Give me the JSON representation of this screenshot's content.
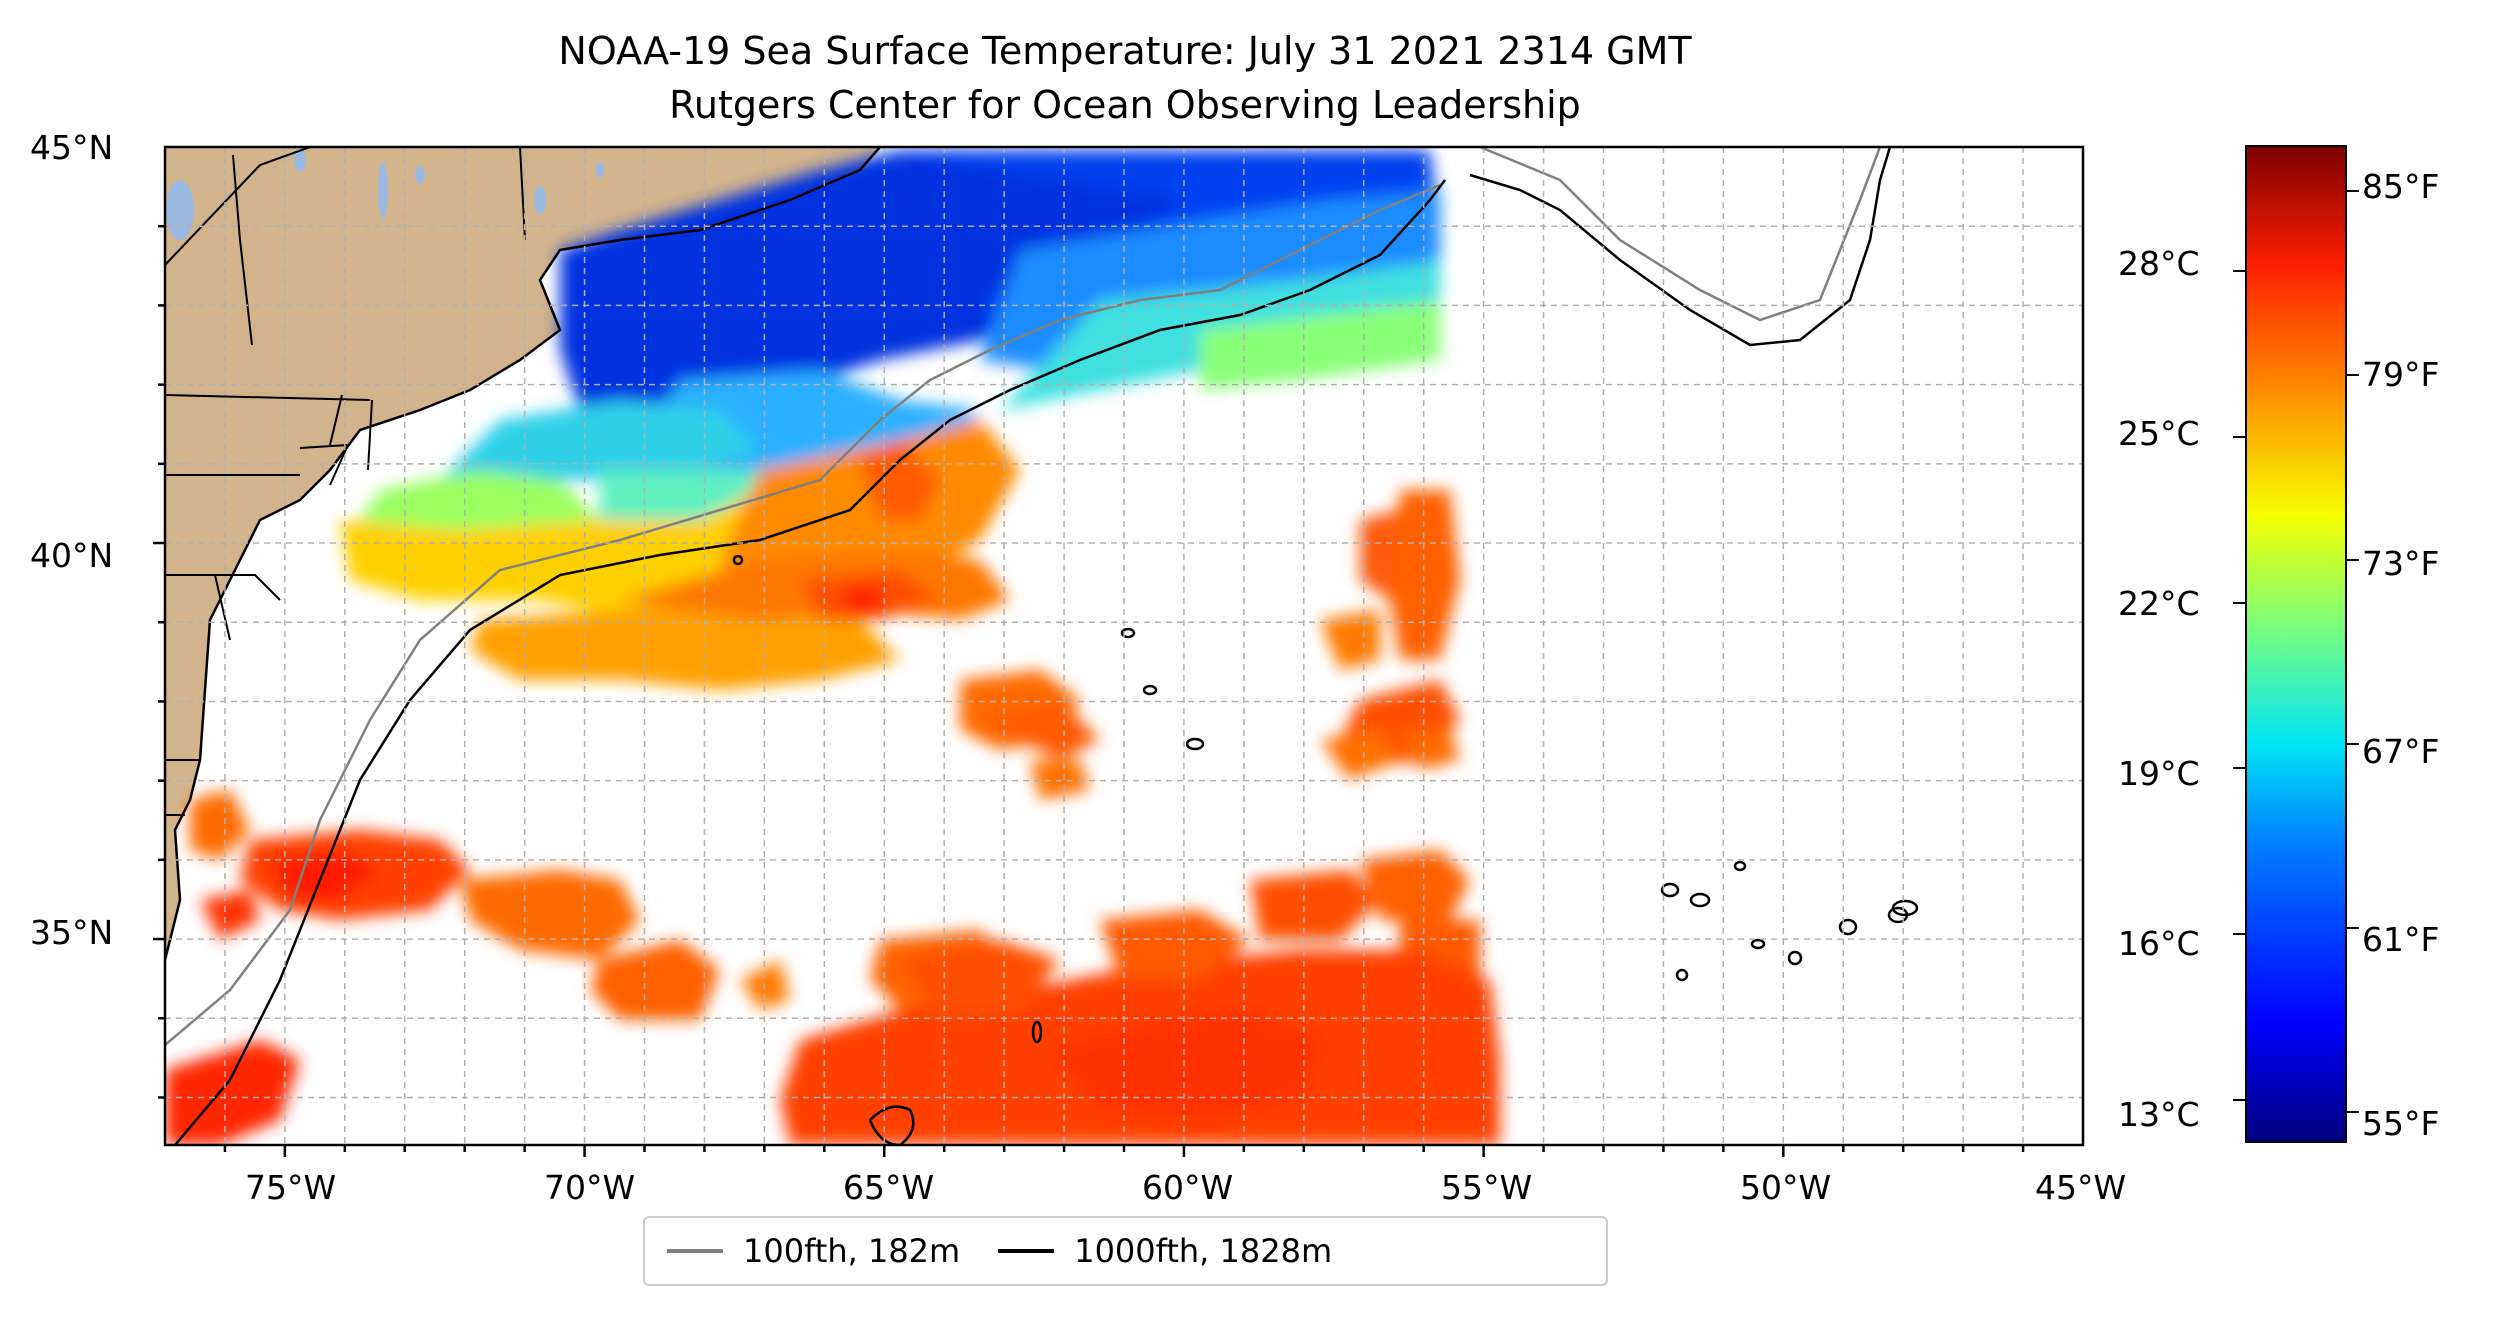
{
  "title": {
    "line1": "NOAA-19 Sea Surface Temperature: July 31 2021 2314 GMT",
    "line2": "Rutgers Center for Ocean Observing Leadership"
  },
  "map": {
    "lon_range": [
      -77,
      -45
    ],
    "lat_range": [
      32.4,
      45
    ],
    "lon_ticks": [
      -75,
      -70,
      -65,
      -60,
      -55,
      -50,
      -45
    ],
    "lon_labels": [
      "75°W",
      "70°W",
      "65°W",
      "60°W",
      "55°W",
      "50°W",
      "45°W"
    ],
    "lat_ticks": [
      35,
      40,
      45
    ],
    "lat_labels": [
      "35°N",
      "40°N",
      "45°N"
    ],
    "gridlines": true,
    "land_color": "#d2b48c",
    "lake_color": "#9bb8e0"
  },
  "legend": {
    "items": [
      {
        "label": "100fth, 182m",
        "color": "#808080"
      },
      {
        "label": "1000fth, 1828m",
        "color": "#000000"
      }
    ]
  },
  "colorbar": {
    "colormap": "jet",
    "range_f": [
      54,
      86.5
    ],
    "fahrenheit_ticks": [
      55,
      61,
      67,
      73,
      79,
      85
    ],
    "fahrenheit_labels": [
      "55°F",
      "61°F",
      "67°F",
      "73°F",
      "79°F",
      "85°F"
    ],
    "celsius_ticks": [
      13,
      16,
      19,
      22,
      25,
      28
    ],
    "celsius_labels": [
      "13°C",
      "16°C",
      "19°C",
      "22°C",
      "25°C",
      "28°C"
    ]
  }
}
